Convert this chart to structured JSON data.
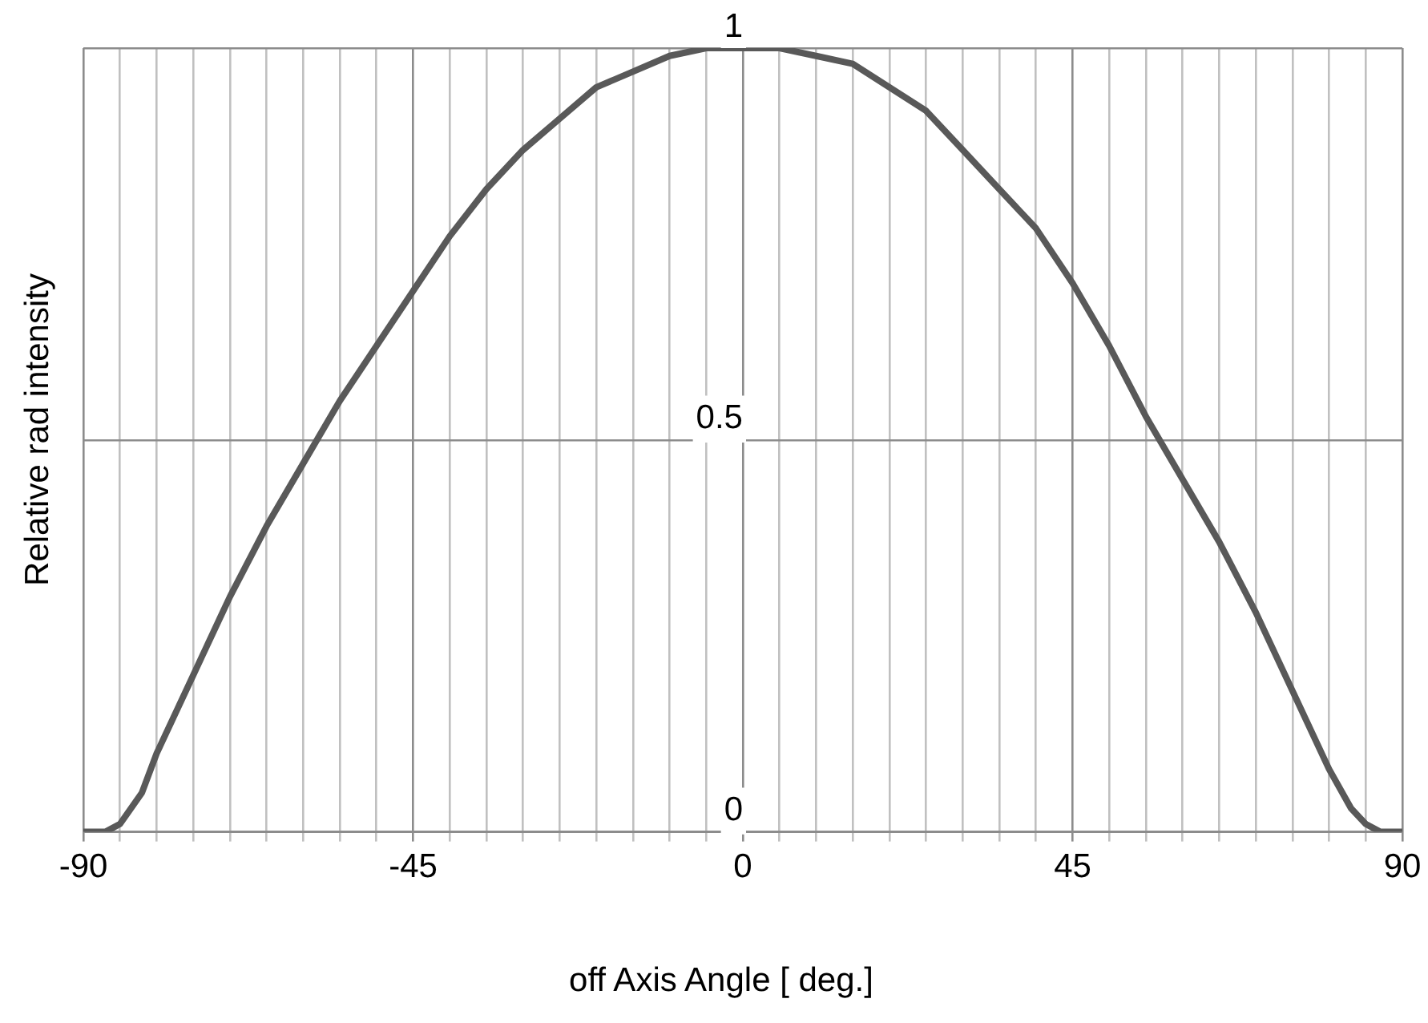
{
  "chart_data": {
    "type": "line",
    "xlabel": "off Axis Angle [ deg.]",
    "ylabel": "Relative rad intensity",
    "x": [
      -90,
      -87,
      -85,
      -82,
      -80,
      -75,
      -70,
      -65,
      -60,
      -55,
      -50,
      -45,
      -40,
      -35,
      -30,
      -25,
      -20,
      -15,
      -10,
      -5,
      0,
      5,
      10,
      15,
      20,
      25,
      30,
      35,
      40,
      45,
      50,
      55,
      60,
      65,
      70,
      75,
      80,
      83,
      85,
      87,
      90
    ],
    "series": [
      {
        "color": "#595959",
        "values": [
          0,
          0,
          0.01,
          0.05,
          0.1,
          0.2,
          0.3,
          0.39,
          0.47,
          0.55,
          0.62,
          0.69,
          0.76,
          0.82,
          0.87,
          0.91,
          0.95,
          0.97,
          0.99,
          1,
          1,
          1,
          0.99,
          0.98,
          0.95,
          0.92,
          0.87,
          0.82,
          0.77,
          0.7,
          0.62,
          0.53,
          0.45,
          0.37,
          0.28,
          0.18,
          0.08,
          0.03,
          0.01,
          0,
          0
        ]
      }
    ],
    "xlim": [
      -90,
      90
    ],
    "ylim": [
      0,
      1
    ],
    "xticks": [
      -90,
      {
        "value": -85,
        "label": null
      },
      {
        "value": -80,
        "label": null
      },
      {
        "value": -75,
        "label": null
      },
      {
        "value": -70,
        "label": null
      },
      {
        "value": -65,
        "label": null
      },
      {
        "value": -60,
        "label": null
      },
      {
        "value": -55,
        "label": null
      },
      {
        "value": -50,
        "label": null
      },
      -45,
      {
        "value": -40,
        "label": null
      },
      {
        "value": -35,
        "label": null
      },
      {
        "value": -30,
        "label": null
      },
      {
        "value": -25,
        "label": null
      },
      {
        "value": -20,
        "label": null
      },
      {
        "value": -15,
        "label": null
      },
      {
        "value": -10,
        "label": null
      },
      {
        "value": -5,
        "label": null
      },
      0,
      {
        "value": 5,
        "label": null
      },
      {
        "value": 10,
        "label": null
      },
      {
        "value": 15,
        "label": null
      },
      {
        "value": 20,
        "label": null
      },
      {
        "value": 25,
        "label": null
      },
      {
        "value": 30,
        "label": null
      },
      {
        "value": 35,
        "label": null
      },
      {
        "value": 40,
        "label": null
      },
      45,
      {
        "value": 50,
        "label": null
      },
      {
        "value": 55,
        "label": null
      },
      {
        "value": 60,
        "label": null
      },
      {
        "value": 65,
        "label": null
      },
      {
        "value": 70,
        "label": null
      },
      {
        "value": 75,
        "label": null
      },
      {
        "value": 80,
        "label": null
      },
      {
        "value": 85,
        "label": null
      },
      90
    ],
    "yticks": [
      0,
      0.5,
      1
    ],
    "grid": true,
    "marker": "none",
    "line_style": "solid"
  }
}
